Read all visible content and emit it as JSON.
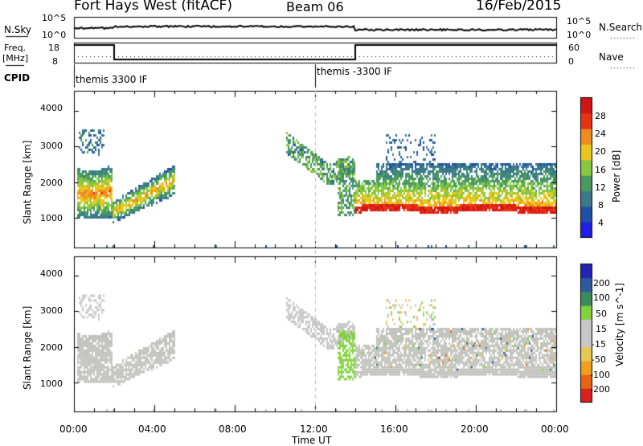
{
  "header": {
    "station": "Fort Hays West (fitACF)",
    "beam": "Beam 06",
    "date": "16/Feb/2015"
  },
  "top_panels": {
    "nsky_label": "N.Sky",
    "nsky_ticks": [
      "10^5",
      "10^0"
    ],
    "nsearch_label": "N.Search",
    "nsearch_ticks": [
      "10^5",
      "10^0"
    ],
    "freq_label_1": "Freq.",
    "freq_label_2": "[MHz]",
    "freq_ticks": [
      "18",
      "8"
    ],
    "nave_label": "Nave",
    "nave_ticks": [
      "60",
      "0"
    ],
    "cpid_label": "CPID",
    "cpid_segments": [
      "themis 3300 IF",
      "themis -3300 IF"
    ]
  },
  "colors": {
    "power": [
      "#1e1ee6",
      "#1f50a6",
      "#3a7a8a",
      "#4a9a60",
      "#86c840",
      "#e8c81e",
      "#f08c1e",
      "#e83214",
      "#d21414"
    ],
    "velocity": [
      "#dc1e1e",
      "#e86414",
      "#f0a01e",
      "#e6c850",
      "#c8c8c8",
      "#c8c8c8",
      "#82d23c",
      "#3a8c5a",
      "#2d5aa0",
      "#2323b4"
    ],
    "ground_scatter": "#c3c3be"
  },
  "chart_data": [
    {
      "type": "heatmap",
      "title": "",
      "parameter": "Power",
      "unit": "dB",
      "xlabel": "Time UT",
      "ylabel": "Slant Range [km]",
      "xlim_hours": [
        0,
        24
      ],
      "ylim_km": [
        180,
        4550
      ],
      "x_ticks": [
        "00:00",
        "04:00",
        "08:00",
        "12:00",
        "16:00",
        "20:00",
        "00:00"
      ],
      "y_ticks": [
        1000,
        2000,
        3000,
        4000
      ],
      "colorbar_label": "Power [dB]",
      "colorbar_ticks": [
        "4",
        "8",
        "12",
        "16",
        "20",
        "24",
        "28"
      ],
      "colorbar_range": [
        0,
        30
      ],
      "features": [
        {
          "t0": 0.1,
          "t1": 1.9,
          "r0": 1050,
          "r1": 2450,
          "value": 18
        },
        {
          "t0": 0.3,
          "t1": 1.5,
          "r0": 2800,
          "r1": 3500,
          "value": 8
        },
        {
          "t0": 1.9,
          "t1": 5.0,
          "r0": 900,
          "r1": 2500,
          "value": 12
        },
        {
          "t0": 10.5,
          "t1": 13.9,
          "r0": 1100,
          "r1": 3500,
          "value": 10
        },
        {
          "t0": 14.0,
          "t1": 24.0,
          "r0": 1150,
          "r1": 2600,
          "value": 14
        },
        {
          "t0": 14.0,
          "t1": 24.0,
          "r0": 1150,
          "r1": 1400,
          "value": 26
        }
      ]
    },
    {
      "type": "heatmap",
      "title": "",
      "parameter": "Velocity",
      "unit": "m s^-1",
      "xlabel": "Time UT",
      "ylabel": "Slant Range [km]",
      "xlim_hours": [
        0,
        24
      ],
      "ylim_km": [
        180,
        4550
      ],
      "x_ticks": [
        "00:00",
        "04:00",
        "08:00",
        "12:00",
        "16:00",
        "20:00",
        "00:00"
      ],
      "y_ticks": [
        1000,
        2000,
        3000,
        4000
      ],
      "colorbar_label": "Velocity [m s^-1]",
      "colorbar_ticks": [
        "200",
        "100",
        "50",
        "15",
        "-15",
        "-50",
        "-100",
        "-200"
      ],
      "colorbar_range": [
        -250,
        250
      ],
      "features": [
        {
          "t0": 0.1,
          "t1": 5.0,
          "r0": 900,
          "r1": 2500,
          "value": 0,
          "ground_scatter": true
        },
        {
          "t0": 13.1,
          "t1": 14.0,
          "r0": 1100,
          "r1": 2500,
          "value": 40
        },
        {
          "t0": 14.0,
          "t1": 24.0,
          "r0": 1150,
          "r1": 2600,
          "value": 0,
          "ground_scatter": true
        }
      ]
    }
  ]
}
